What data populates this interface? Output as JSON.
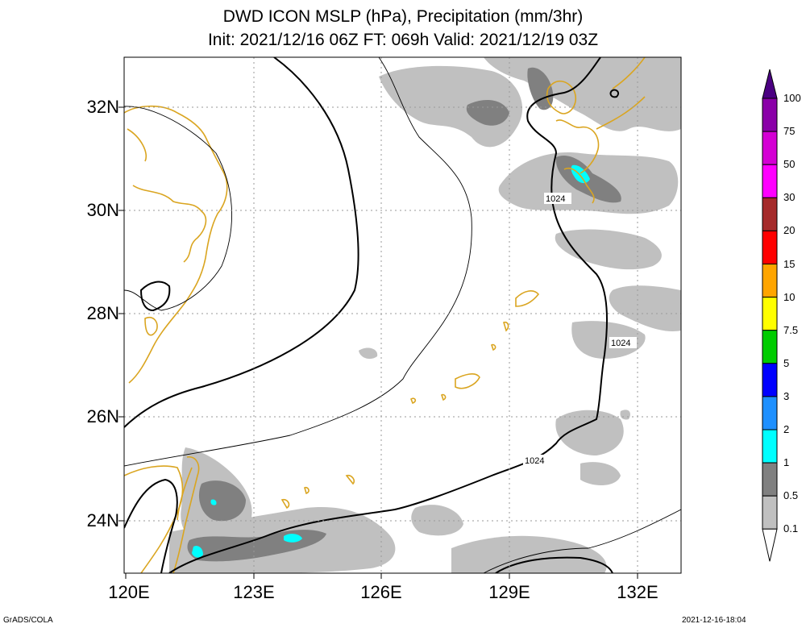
{
  "title": {
    "line1": "DWD ICON MSLP (hPa), Precipitation (mm/3hr)",
    "line2": "Init: 2021/12/16 06Z  FT: 069h  Valid: 2021/12/19 03Z"
  },
  "axes": {
    "lat_labels": [
      "32N",
      "30N",
      "28N",
      "26N",
      "24N"
    ],
    "lon_labels": [
      "120E",
      "123E",
      "126E",
      "129E",
      "132E"
    ]
  },
  "isobar_labels": [
    "1024",
    "1024",
    "1024"
  ],
  "colorbar": {
    "levels": [
      "100",
      "75",
      "50",
      "30",
      "20",
      "15",
      "10",
      "7.5",
      "5",
      "3",
      "2",
      "1",
      "0.5",
      "0.1"
    ],
    "colors": [
      "#4b0082",
      "#8a00a8",
      "#d400d4",
      "#ff00ff",
      "#a52a2a",
      "#ff0000",
      "#ffa500",
      "#ffff00",
      "#00cc00",
      "#0000ff",
      "#1e90ff",
      "#00ffff",
      "#808080",
      "#c0c0c0",
      "#ffffff"
    ]
  },
  "footer": {
    "left": "GrADS/COLA",
    "right": "2021-12-16-18:04"
  },
  "colors": {
    "coastline": "#daa520",
    "light_precip": "#c0c0c0",
    "dark_precip": "#808080",
    "heavy_precip": "#00ffff"
  }
}
